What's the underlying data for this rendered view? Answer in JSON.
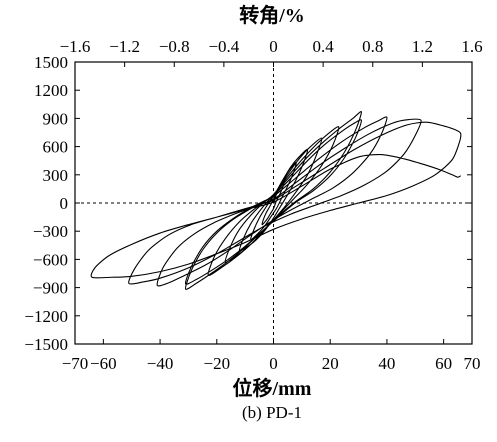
{
  "chart_data": {
    "type": "line",
    "xlabel": "位移/mm",
    "x2label": "转角/%",
    "caption": "(b) PD-1",
    "xlim": [
      -70,
      70
    ],
    "x2lim": [
      -1.6,
      1.6
    ],
    "ylim": [
      -1500,
      1500
    ],
    "xticks": {
      "values": [
        -70,
        -60,
        -40,
        -20,
        0,
        20,
        40,
        60,
        70
      ],
      "labels": [
        "−70",
        "−60",
        "−40",
        "−20",
        "0",
        "20",
        "40",
        "60",
        "70"
      ]
    },
    "x2ticks": {
      "values": [
        -1.6,
        -1.2,
        -0.8,
        -0.4,
        0,
        0.4,
        0.8,
        1.2,
        1.6
      ],
      "labels": [
        "−1.6",
        "−1.2",
        "−0.8",
        "−0.4",
        "0",
        "0.4",
        "0.8",
        "1.2",
        "1.6"
      ]
    },
    "yticks": {
      "values": [
        1500,
        1200,
        900,
        600,
        300,
        0,
        -300,
        -600,
        -900,
        -1200,
        -1500
      ],
      "labels": [
        "1500",
        "1200",
        "900",
        "600",
        "300",
        "0",
        "−300",
        "−600",
        "−900",
        "−1200",
        "−1500"
      ]
    },
    "grid": false,
    "reference_lines": {
      "x": 0,
      "y": 0,
      "style": "dashed"
    },
    "colors": {
      "line": "#000000",
      "axes": "#000000",
      "background": "#ffffff"
    },
    "series": [
      {
        "points": [
          [
            0,
            0
          ],
          [
            1,
            90
          ],
          [
            2,
            160
          ],
          [
            3,
            215
          ],
          [
            4,
            260
          ],
          [
            3.5,
            190
          ],
          [
            2.5,
            110
          ],
          [
            1,
            20
          ],
          [
            0,
            -60
          ],
          [
            -1,
            -110
          ],
          [
            -2,
            -160
          ],
          [
            -3,
            -200
          ],
          [
            -4,
            -230
          ],
          [
            -3.5,
            -170
          ],
          [
            -2.5,
            -100
          ],
          [
            -1,
            -20
          ],
          [
            0,
            40
          ],
          [
            2,
            170
          ],
          [
            4,
            280
          ],
          [
            6,
            370
          ],
          [
            8,
            430
          ],
          [
            7,
            320
          ],
          [
            5,
            180
          ],
          [
            3,
            60
          ],
          [
            1,
            -60
          ],
          [
            -1,
            -150
          ],
          [
            -3,
            -240
          ],
          [
            -5,
            -310
          ],
          [
            -8,
            -390
          ],
          [
            -7,
            -290
          ],
          [
            -5,
            -160
          ],
          [
            -3,
            -60
          ],
          [
            -1,
            30
          ],
          [
            0,
            70
          ],
          [
            3,
            230
          ],
          [
            6,
            380
          ],
          [
            9,
            490
          ],
          [
            12,
            570
          ],
          [
            10.5,
            420
          ],
          [
            8,
            250
          ],
          [
            5,
            90
          ],
          [
            2,
            -60
          ],
          [
            0,
            -160
          ],
          [
            -3,
            -290
          ],
          [
            -6,
            -390
          ],
          [
            -9,
            -460
          ],
          [
            -12,
            -510
          ],
          [
            -10.5,
            -370
          ],
          [
            -8,
            -220
          ],
          [
            -5,
            -90
          ],
          [
            -2,
            20
          ],
          [
            0,
            80
          ],
          [
            4,
            260
          ],
          [
            8,
            430
          ],
          [
            12,
            570
          ],
          [
            17,
            690
          ],
          [
            15,
            500
          ],
          [
            12,
            300
          ],
          [
            8,
            120
          ],
          [
            4,
            -40
          ],
          [
            0,
            -180
          ],
          [
            -4,
            -320
          ],
          [
            -8,
            -440
          ],
          [
            -12,
            -540
          ],
          [
            -17,
            -630
          ],
          [
            -15,
            -450
          ],
          [
            -12,
            -280
          ],
          [
            -8,
            -130
          ],
          [
            -4,
            -10
          ],
          [
            0,
            90
          ],
          [
            5,
            280
          ],
          [
            10,
            460
          ],
          [
            15,
            620
          ],
          [
            19,
            730
          ],
          [
            23,
            810
          ],
          [
            21,
            620
          ],
          [
            17,
            400
          ],
          [
            12,
            200
          ],
          [
            7,
            40
          ],
          [
            2,
            -120
          ],
          [
            -3,
            -280
          ],
          [
            -8,
            -440
          ],
          [
            -13,
            -570
          ],
          [
            -18,
            -680
          ],
          [
            -23,
            -770
          ],
          [
            -21,
            -580
          ],
          [
            -17,
            -380
          ],
          [
            -12,
            -200
          ],
          [
            -7,
            -70
          ],
          [
            -2,
            40
          ],
          [
            0,
            90
          ],
          [
            6,
            290
          ],
          [
            12,
            490
          ],
          [
            18,
            660
          ],
          [
            24,
            810
          ],
          [
            28,
            900
          ],
          [
            31,
            970
          ],
          [
            29,
            780
          ],
          [
            25,
            540
          ],
          [
            20,
            330
          ],
          [
            14,
            150
          ],
          [
            8,
            20
          ],
          [
            2,
            -130
          ],
          [
            -4,
            -300
          ],
          [
            -10,
            -470
          ],
          [
            -16,
            -620
          ],
          [
            -22,
            -750
          ],
          [
            -27,
            -850
          ],
          [
            -31,
            -915
          ],
          [
            -29,
            -720
          ],
          [
            -25,
            -500
          ],
          [
            -20,
            -320
          ],
          [
            -14,
            -170
          ],
          [
            -8,
            -60
          ],
          [
            -2,
            40
          ],
          [
            0,
            80
          ],
          [
            6,
            260
          ],
          [
            12,
            450
          ],
          [
            18,
            620
          ],
          [
            24,
            760
          ],
          [
            28,
            840
          ],
          [
            31,
            880
          ],
          [
            29,
            700
          ],
          [
            25,
            480
          ],
          [
            20,
            290
          ],
          [
            14,
            130
          ],
          [
            8,
            10
          ],
          [
            2,
            -140
          ],
          [
            -4,
            -300
          ],
          [
            -10,
            -460
          ],
          [
            -16,
            -600
          ],
          [
            -22,
            -720
          ],
          [
            -27,
            -810
          ],
          [
            -31,
            -860
          ],
          [
            -29,
            -680
          ],
          [
            -25,
            -470
          ],
          [
            -20,
            -300
          ],
          [
            -14,
            -160
          ],
          [
            -8,
            -50
          ],
          [
            -2,
            40
          ],
          [
            0,
            70
          ],
          [
            8,
            270
          ],
          [
            16,
            470
          ],
          [
            24,
            650
          ],
          [
            32,
            800
          ],
          [
            37,
            875
          ],
          [
            40,
            910
          ],
          [
            38,
            730
          ],
          [
            34,
            520
          ],
          [
            28,
            320
          ],
          [
            21,
            160
          ],
          [
            14,
            50
          ],
          [
            7,
            -60
          ],
          [
            0,
            -180
          ],
          [
            -8,
            -340
          ],
          [
            -16,
            -510
          ],
          [
            -24,
            -660
          ],
          [
            -32,
            -780
          ],
          [
            -37,
            -850
          ],
          [
            -41,
            -875
          ],
          [
            -39,
            -690
          ],
          [
            -34,
            -480
          ],
          [
            -28,
            -330
          ],
          [
            -21,
            -210
          ],
          [
            -14,
            -120
          ],
          [
            -7,
            -40
          ],
          [
            0,
            40
          ],
          [
            8,
            220
          ],
          [
            16,
            400
          ],
          [
            25,
            580
          ],
          [
            34,
            740
          ],
          [
            42,
            850
          ],
          [
            47,
            885
          ],
          [
            52,
            880
          ],
          [
            50,
            720
          ],
          [
            46,
            520
          ],
          [
            40,
            340
          ],
          [
            32,
            190
          ],
          [
            24,
            80
          ],
          [
            15,
            -20
          ],
          [
            6,
            -120
          ],
          [
            -4,
            -260
          ],
          [
            -12,
            -400
          ],
          [
            -20,
            -540
          ],
          [
            -30,
            -690
          ],
          [
            -40,
            -800
          ],
          [
            -46,
            -840
          ],
          [
            -51,
            -855
          ],
          [
            -49,
            -700
          ],
          [
            -44,
            -500
          ],
          [
            -37,
            -340
          ],
          [
            -29,
            -230
          ],
          [
            -20,
            -150
          ],
          [
            -11,
            -70
          ],
          [
            -3,
            0
          ],
          [
            0,
            30
          ],
          [
            8,
            180
          ],
          [
            18,
            370
          ],
          [
            28,
            560
          ],
          [
            38,
            720
          ],
          [
            47,
            830
          ],
          [
            54,
            860
          ],
          [
            60,
            820
          ],
          [
            64,
            780
          ],
          [
            66,
            740
          ],
          [
            65.5,
            640
          ],
          [
            63,
            460
          ],
          [
            57,
            300
          ],
          [
            49,
            180
          ],
          [
            40,
            80
          ],
          [
            30,
            0
          ],
          [
            20,
            -80
          ],
          [
            10,
            -170
          ],
          [
            0,
            -280
          ],
          [
            -10,
            -420
          ],
          [
            -20,
            -540
          ],
          [
            -30,
            -650
          ],
          [
            -40,
            -730
          ],
          [
            -50,
            -780
          ],
          [
            -57,
            -790
          ],
          [
            -64,
            -790
          ],
          [
            -63,
            -690
          ],
          [
            -58,
            -560
          ],
          [
            -50,
            -440
          ],
          [
            -40,
            -320
          ],
          [
            -30,
            -230
          ],
          [
            -20,
            -150
          ],
          [
            -10,
            -70
          ],
          [
            0,
            10
          ],
          [
            10,
            180
          ],
          [
            20,
            360
          ],
          [
            30,
            490
          ],
          [
            38,
            515
          ],
          [
            46,
            470
          ],
          [
            53,
            410
          ],
          [
            59,
            350
          ],
          [
            63,
            300
          ],
          [
            65,
            275
          ],
          [
            66,
            290
          ]
        ]
      }
    ]
  }
}
